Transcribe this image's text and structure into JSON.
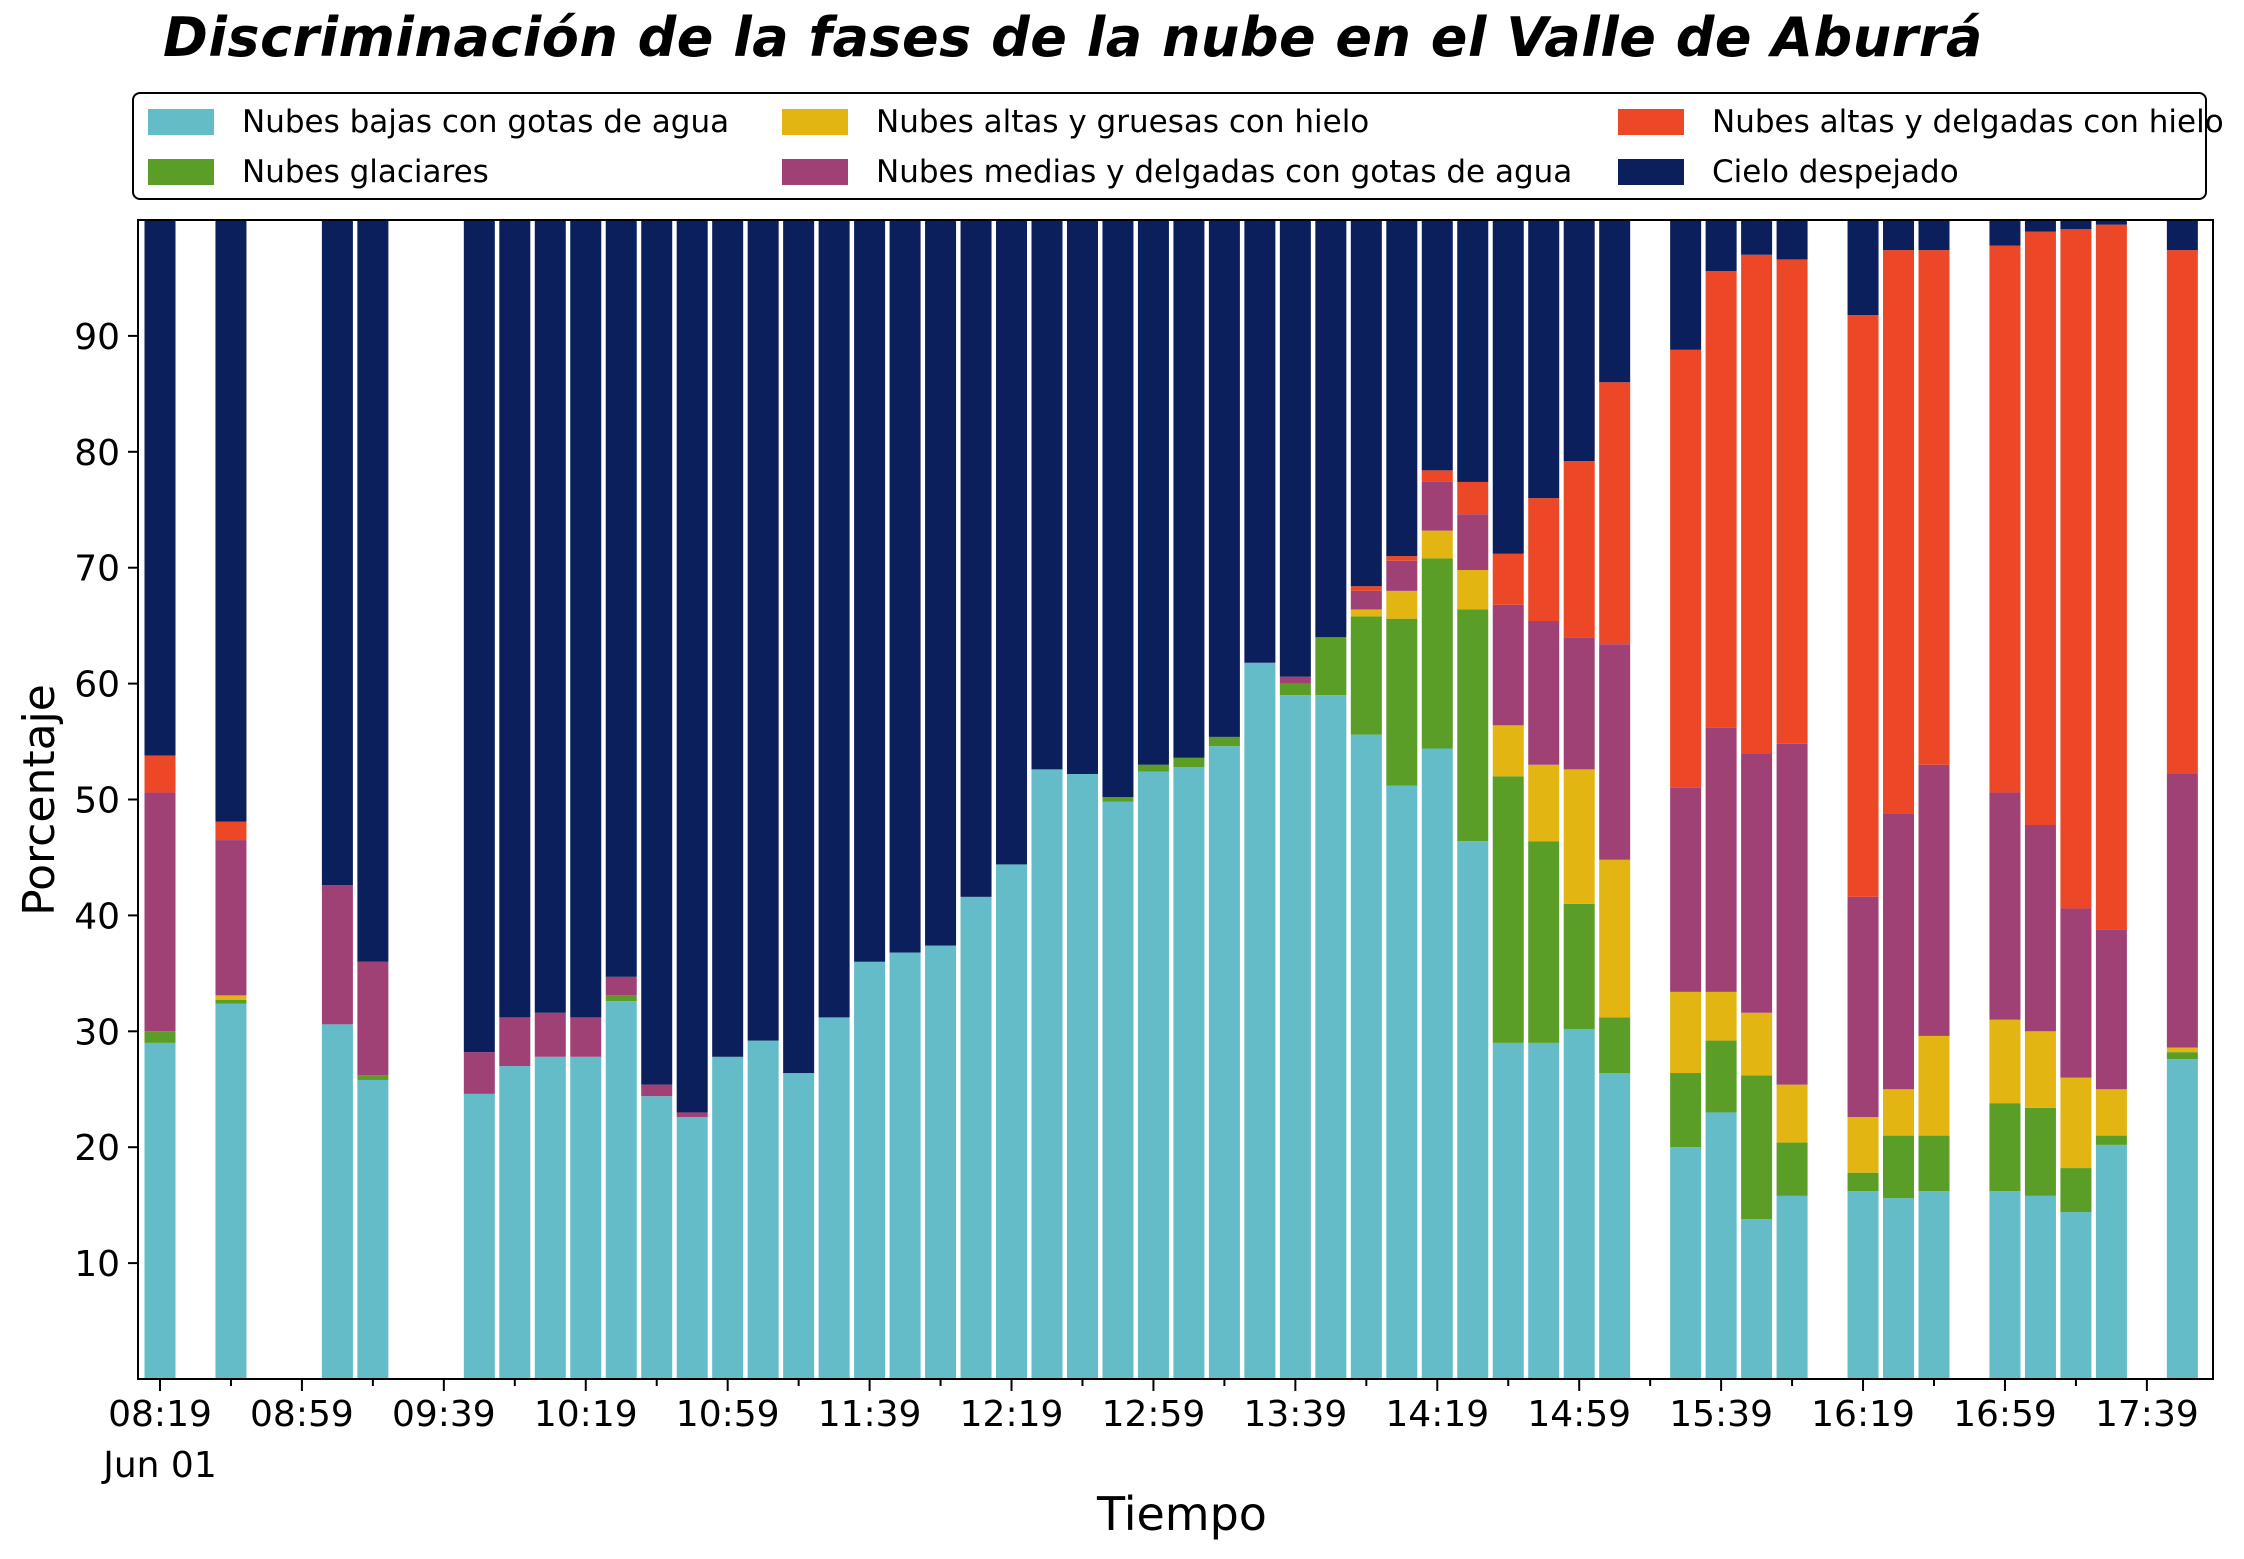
{
  "chart_data": {
    "type": "bar",
    "stacked": true,
    "title": "Discriminación de la fases de la nube en el Valle de Aburrá",
    "xlabel": "Tiempo",
    "ylabel": "Porcentaje",
    "ylim": [
      0,
      100
    ],
    "yticks": [
      10,
      20,
      30,
      40,
      50,
      60,
      70,
      80,
      90
    ],
    "x_tick_labels": [
      "08:19",
      "08:59",
      "09:39",
      "10:19",
      "10:59",
      "11:39",
      "12:19",
      "12:59",
      "13:39",
      "14:19",
      "14:59",
      "15:39",
      "16:19",
      "16:59",
      "17:39"
    ],
    "x_date_label": "Jun 01",
    "legend_position": "top",
    "legend_columns": 3,
    "grid": false,
    "slots_per_tick": 4,
    "slot_count": 58,
    "series": [
      {
        "name": "Nubes bajas con gotas de agua",
        "color": "#63BCC8"
      },
      {
        "name": "Nubes glaciares",
        "color": "#5A9E28"
      },
      {
        "name": "Nubes altas y gruesas con hielo",
        "color": "#E2B512"
      },
      {
        "name": "Nubes medias y delgadas con gotas de agua",
        "color": "#A04176"
      },
      {
        "name": "Nubes altas y delgadas con hielo",
        "color": "#EC4827"
      },
      {
        "name": "Cielo despejado",
        "color": "#0A1F5C"
      }
    ],
    "bars": [
      {
        "slot": 0,
        "values": [
          29,
          1,
          0,
          20.6,
          3.2,
          46.2
        ]
      },
      {
        "slot": 2,
        "values": [
          32.4,
          0.3,
          0.4,
          13.4,
          1.6,
          51.9
        ]
      },
      {
        "slot": 5,
        "values": [
          30.6,
          0,
          0,
          12,
          0,
          57.4
        ]
      },
      {
        "slot": 6,
        "values": [
          25.8,
          0.4,
          0,
          9.8,
          0,
          64
        ]
      },
      {
        "slot": 9,
        "values": [
          24.6,
          0,
          0,
          3.6,
          0,
          71.8
        ]
      },
      {
        "slot": 10,
        "values": [
          27,
          0,
          0,
          4.2,
          0,
          68.8
        ]
      },
      {
        "slot": 11,
        "values": [
          27.8,
          0,
          0,
          3.8,
          0,
          68.4
        ]
      },
      {
        "slot": 12,
        "values": [
          27.8,
          0,
          0,
          3.4,
          0,
          68.8
        ]
      },
      {
        "slot": 13,
        "values": [
          32.6,
          0.5,
          0,
          1.6,
          0,
          65.3
        ]
      },
      {
        "slot": 14,
        "values": [
          24.4,
          0,
          0,
          1,
          0,
          74.6
        ]
      },
      {
        "slot": 15,
        "values": [
          22.6,
          0,
          0,
          0.4,
          0,
          77
        ]
      },
      {
        "slot": 16,
        "values": [
          27.8,
          0,
          0,
          0,
          0,
          72.2
        ]
      },
      {
        "slot": 17,
        "values": [
          29.2,
          0,
          0,
          0,
          0,
          70.8
        ]
      },
      {
        "slot": 18,
        "values": [
          26.4,
          0,
          0,
          0,
          0,
          73.6
        ]
      },
      {
        "slot": 19,
        "values": [
          31.2,
          0,
          0,
          0,
          0,
          68.8
        ]
      },
      {
        "slot": 20,
        "values": [
          36,
          0,
          0,
          0,
          0,
          64
        ]
      },
      {
        "slot": 21,
        "values": [
          36.8,
          0,
          0,
          0,
          0,
          63.2
        ]
      },
      {
        "slot": 22,
        "values": [
          37.4,
          0,
          0,
          0,
          0,
          62.6
        ]
      },
      {
        "slot": 23,
        "values": [
          41.6,
          0,
          0,
          0,
          0,
          58.4
        ]
      },
      {
        "slot": 24,
        "values": [
          44.4,
          0,
          0,
          0,
          0,
          55.6
        ]
      },
      {
        "slot": 25,
        "values": [
          52.6,
          0,
          0,
          0,
          0,
          47.4
        ]
      },
      {
        "slot": 26,
        "values": [
          52.2,
          0,
          0,
          0,
          0,
          47.8
        ]
      },
      {
        "slot": 27,
        "values": [
          49.8,
          0.4,
          0,
          0,
          0,
          49.8
        ]
      },
      {
        "slot": 28,
        "values": [
          52.4,
          0.6,
          0,
          0,
          0,
          47
        ]
      },
      {
        "slot": 29,
        "values": [
          52.8,
          0.8,
          0,
          0,
          0,
          46.4
        ]
      },
      {
        "slot": 30,
        "values": [
          54.6,
          0.8,
          0,
          0,
          0,
          44.6
        ]
      },
      {
        "slot": 31,
        "values": [
          61.8,
          0,
          0,
          0,
          0,
          38.2
        ]
      },
      {
        "slot": 32,
        "values": [
          59,
          1,
          0,
          0.6,
          0,
          39.4
        ]
      },
      {
        "slot": 33,
        "values": [
          59,
          5,
          0,
          0,
          0,
          36
        ]
      },
      {
        "slot": 34,
        "values": [
          55.6,
          10.2,
          0.6,
          1.6,
          0.4,
          31.6
        ]
      },
      {
        "slot": 35,
        "values": [
          51.2,
          14.4,
          2.4,
          2.6,
          0.4,
          29
        ]
      },
      {
        "slot": 36,
        "values": [
          54.4,
          16.4,
          2.4,
          4.2,
          1,
          21.6
        ]
      },
      {
        "slot": 37,
        "values": [
          46.4,
          20,
          3.4,
          4.8,
          2.8,
          22.6
        ]
      },
      {
        "slot": 38,
        "values": [
          29,
          23,
          4.4,
          10.4,
          4.4,
          28.8
        ]
      },
      {
        "slot": 39,
        "values": [
          29,
          17.4,
          6.6,
          12.4,
          10.6,
          24
        ]
      },
      {
        "slot": 40,
        "values": [
          30.2,
          10.8,
          11.6,
          11.4,
          15.2,
          20.8
        ]
      },
      {
        "slot": 41,
        "values": [
          26.4,
          4.8,
          13.6,
          18.6,
          22.6,
          14
        ]
      },
      {
        "slot": 43,
        "values": [
          20,
          6.4,
          7,
          17.6,
          37.8,
          11.2
        ]
      },
      {
        "slot": 44,
        "values": [
          23,
          6.2,
          4.2,
          22.8,
          39.4,
          4.4
        ]
      },
      {
        "slot": 45,
        "values": [
          13.8,
          12.4,
          5.4,
          22.4,
          43,
          3
        ]
      },
      {
        "slot": 46,
        "values": [
          15.8,
          4.6,
          5,
          29.4,
          41.8,
          3.4
        ]
      },
      {
        "slot": 48,
        "values": [
          16.2,
          1.6,
          4.8,
          19,
          50.2,
          8.2
        ]
      },
      {
        "slot": 49,
        "values": [
          15.6,
          5.4,
          4,
          23.8,
          48.6,
          2.6
        ]
      },
      {
        "slot": 50,
        "values": [
          16.2,
          4.8,
          8.6,
          23.4,
          44.4,
          2.6
        ]
      },
      {
        "slot": 52,
        "values": [
          16.2,
          7.6,
          7.2,
          19.6,
          47.2,
          2.2
        ]
      },
      {
        "slot": 53,
        "values": [
          15.8,
          7.6,
          6.6,
          17.8,
          51.2,
          1
        ]
      },
      {
        "slot": 54,
        "values": [
          14.4,
          3.8,
          7.8,
          14.6,
          58.6,
          0.8
        ]
      },
      {
        "slot": 55,
        "values": [
          20.2,
          0.8,
          4,
          13.8,
          60.8,
          0.4
        ]
      },
      {
        "slot": 57,
        "values": [
          27.6,
          0.6,
          0.4,
          23.6,
          45.2,
          2.6
        ]
      }
    ]
  }
}
